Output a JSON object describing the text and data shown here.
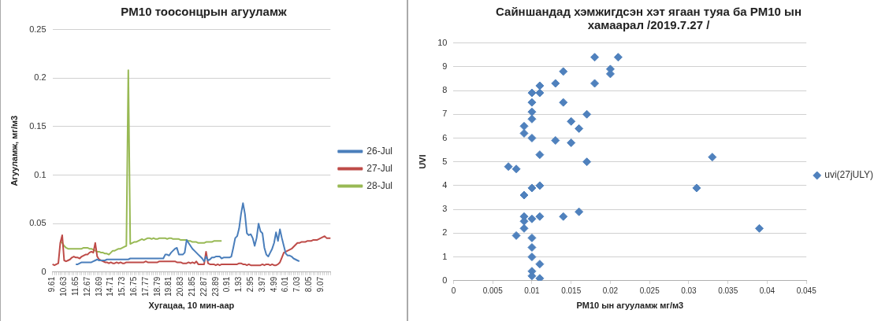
{
  "chart_data": [
    {
      "type": "line",
      "title": "PM10 тоосонцрын агууламж",
      "xlabel": "Хугацаа, 10 мин-аар",
      "ylabel": "Агууламж, мг/м3",
      "categories": [
        "9.61",
        null,
        null,
        null,
        null,
        null,
        "10.63",
        null,
        null,
        null,
        null,
        null,
        "11.65",
        null,
        null,
        null,
        null,
        null,
        "12.67",
        null,
        null,
        null,
        null,
        null,
        "13.69",
        null,
        null,
        null,
        null,
        null,
        "14.71",
        null,
        null,
        null,
        null,
        null,
        "15.73",
        null,
        null,
        null,
        null,
        null,
        "16.75",
        null,
        null,
        null,
        null,
        null,
        "17.77",
        null,
        null,
        null,
        null,
        null,
        "18.79",
        null,
        null,
        null,
        null,
        null,
        "19.81",
        null,
        null,
        null,
        null,
        null,
        "20.83",
        null,
        null,
        null,
        null,
        null,
        "21.85",
        null,
        null,
        null,
        null,
        null,
        "22.87",
        null,
        null,
        null,
        null,
        null,
        "23.89",
        null,
        null,
        null,
        null,
        null,
        "0.91",
        null,
        null,
        null,
        null,
        null,
        "1.93",
        null,
        null,
        null,
        null,
        null,
        "2.95",
        null,
        null,
        null,
        null,
        null,
        "3.97",
        null,
        null,
        null,
        null,
        null,
        "4.99",
        null,
        null,
        null,
        null,
        null,
        "6.01",
        null,
        null,
        null,
        null,
        null,
        "7.03",
        null,
        null,
        null,
        null,
        null,
        "8.05",
        null,
        null,
        null,
        null,
        null,
        "9.07",
        null,
        null,
        null,
        null,
        null
      ],
      "series": [
        {
          "name": "26-Jul",
          "color": "#4a7ebb",
          "values": [
            null,
            null,
            null,
            null,
            null,
            null,
            null,
            null,
            null,
            null,
            null,
            null,
            0.008,
            0.008,
            0.009,
            0.01,
            0.01,
            0.01,
            0.01,
            0.01,
            0.01,
            0.011,
            0.012,
            0.013,
            0.012,
            0.012,
            0.012,
            0.012,
            0.013,
            0.013,
            0.013,
            0.013,
            0.013,
            0.013,
            0.013,
            0.013,
            0.013,
            0.013,
            0.013,
            0.013,
            0.014,
            0.014,
            0.014,
            0.014,
            0.014,
            0.014,
            0.014,
            0.014,
            0.014,
            0.014,
            0.014,
            0.014,
            0.014,
            0.014,
            0.014,
            0.014,
            0.014,
            0.014,
            0.018,
            0.018,
            0.017,
            0.02,
            0.022,
            0.024,
            0.025,
            0.018,
            0.018,
            0.018,
            0.02,
            0.033,
            0.03,
            0.027,
            0.024,
            0.022,
            0.02,
            0.018,
            0.016,
            0.014,
            0.011,
            0.016,
            0.012,
            0.013,
            0.015,
            0.015,
            0.016,
            0.016,
            0.016,
            0.014,
            0.015,
            0.015,
            0.015,
            0.015,
            0.016,
            0.025,
            0.035,
            0.037,
            0.045,
            0.06,
            0.071,
            0.06,
            0.04,
            0.038,
            0.039,
            0.035,
            0.027,
            0.035,
            0.05,
            0.042,
            0.04,
            0.025,
            0.018,
            0.016,
            0.02,
            0.024,
            0.03,
            0.041,
            0.032,
            0.044,
            0.035,
            0.027,
            0.019,
            0.017,
            0.017,
            0.016,
            0.014,
            0.013,
            0.012,
            0.011,
            null,
            null,
            null,
            null,
            null,
            null,
            null,
            null,
            null,
            null,
            null,
            null,
            null,
            null,
            null,
            null
          ]
        },
        {
          "name": "27-Jul",
          "color": "#be4b48",
          "values": [
            0.008,
            0.007,
            0.008,
            0.009,
            0.03,
            0.038,
            0.012,
            0.011,
            0.012,
            0.013,
            0.015,
            0.016,
            0.015,
            0.015,
            0.014,
            0.016,
            0.017,
            0.018,
            0.018,
            0.02,
            0.021,
            0.02,
            0.03,
            0.016,
            0.013,
            0.012,
            0.011,
            0.01,
            0.01,
            0.009,
            0.01,
            0.009,
            0.009,
            0.01,
            0.009,
            0.01,
            0.009,
            0.009,
            0.01,
            0.01,
            0.01,
            0.01,
            0.01,
            0.01,
            0.01,
            0.01,
            0.01,
            0.01,
            0.011,
            0.01,
            0.01,
            0.01,
            0.01,
            0.01,
            0.01,
            0.011,
            0.011,
            0.011,
            0.011,
            0.011,
            0.011,
            0.011,
            0.011,
            0.011,
            0.01,
            0.01,
            0.01,
            0.009,
            0.009,
            0.009,
            0.01,
            0.009,
            0.01,
            0.009,
            0.011,
            0.008,
            0.008,
            0.008,
            0.008,
            0.021,
            0.009,
            0.008,
            0.008,
            0.008,
            0.007,
            0.008,
            0.007,
            0.008,
            0.008,
            0.008,
            0.008,
            0.008,
            0.008,
            0.008,
            0.008,
            0.008,
            0.009,
            0.009,
            0.008,
            0.008,
            0.007,
            0.008,
            0.007,
            0.007,
            0.007,
            0.007,
            0.007,
            0.007,
            0.008,
            0.007,
            0.008,
            0.008,
            0.007,
            0.008,
            0.007,
            0.007,
            0.008,
            0.01,
            0.015,
            0.02,
            0.021,
            0.022,
            0.023,
            0.024,
            0.026,
            0.028,
            0.03,
            0.03,
            0.031,
            0.031,
            0.031,
            0.032,
            0.032,
            0.032,
            0.033,
            0.033,
            0.033,
            0.034,
            0.035,
            0.036,
            0.037,
            0.035,
            0.035,
            0.035
          ]
        },
        {
          "name": "28-Jul",
          "color": "#98b954",
          "values": [
            null,
            null,
            null,
            null,
            0.032,
            0.03,
            0.027,
            0.025,
            0.024,
            0.024,
            0.024,
            0.024,
            0.024,
            0.024,
            0.024,
            0.024,
            0.025,
            0.025,
            0.025,
            0.024,
            0.024,
            0.023,
            0.022,
            0.021,
            0.021,
            0.02,
            0.02,
            0.019,
            0.019,
            0.018,
            0.02,
            0.022,
            0.022,
            0.023,
            0.024,
            0.024,
            0.025,
            0.026,
            0.027,
            0.208,
            0.029,
            0.03,
            0.031,
            0.031,
            0.032,
            0.033,
            0.034,
            0.033,
            0.034,
            0.035,
            0.035,
            0.034,
            0.035,
            0.034,
            0.034,
            0.035,
            0.035,
            0.035,
            0.035,
            0.034,
            0.035,
            0.035,
            0.034,
            0.034,
            0.034,
            0.034,
            0.033,
            0.033,
            0.033,
            0.033,
            0.032,
            0.032,
            0.031,
            0.031,
            0.031,
            0.03,
            0.03,
            0.03,
            0.03,
            0.031,
            0.031,
            0.031,
            0.031,
            0.032,
            0.032,
            0.032,
            0.032,
            0.032,
            null,
            null,
            null,
            null,
            null,
            null,
            null,
            null,
            null,
            null,
            null,
            null,
            null,
            null,
            null,
            null,
            null,
            null,
            null,
            null,
            null,
            null,
            null,
            null,
            null,
            null,
            null,
            null,
            null,
            null,
            null,
            null,
            null,
            null,
            null,
            null,
            null,
            null,
            null,
            null,
            null,
            null,
            null,
            null,
            null,
            null,
            null,
            null,
            null,
            null,
            null,
            null,
            null,
            null,
            null,
            null
          ]
        }
      ],
      "ylim": [
        0,
        0.25
      ],
      "yticks": [
        0,
        0.05,
        0.1,
        0.15,
        0.2,
        0.25
      ],
      "grid": "y",
      "legend": "right",
      "marker": "none",
      "line_style": "solid"
    },
    {
      "type": "scatter",
      "title": "Сайншандад хэмжигдсэн хэт ягаан туяа ба PM10 ын хамаарал /2019.7.27 /",
      "xlabel": "PM10 ын агууламж мг/м3",
      "ylabel": "UVI",
      "series": [
        {
          "name": "uvi(27jULY)",
          "color": "#4f81bd",
          "x": [
            0.018,
            0.021,
            0.014,
            0.02,
            0.02,
            0.013,
            0.018,
            0.011,
            0.01,
            0.011,
            0.01,
            0.014,
            0.01,
            0.017,
            0.01,
            0.015,
            0.009,
            0.016,
            0.009,
            0.01,
            0.013,
            0.015,
            0.011,
            0.033,
            0.017,
            0.007,
            0.008,
            0.011,
            0.01,
            0.031,
            0.009,
            0.016,
            0.009,
            0.011,
            0.014,
            0.01,
            0.009,
            0.009,
            0.039,
            0.008,
            0.01,
            0.01,
            0.01,
            0.011,
            0.01,
            0.01,
            0.011
          ],
          "values": [
            9.4,
            9.4,
            8.8,
            8.9,
            8.7,
            8.3,
            8.3,
            8.2,
            7.9,
            7.9,
            7.5,
            7.5,
            7.1,
            7.0,
            6.8,
            6.7,
            6.5,
            6.4,
            6.2,
            6.0,
            5.9,
            5.8,
            5.3,
            5.2,
            5.0,
            4.8,
            4.7,
            4.0,
            3.9,
            3.9,
            3.6,
            2.9,
            2.7,
            2.7,
            2.7,
            2.6,
            2.5,
            2.2,
            2.2,
            1.9,
            1.8,
            1.4,
            1.0,
            0.7,
            0.4,
            0.2,
            0.1
          ]
        }
      ],
      "xlim": [
        0,
        0.045
      ],
      "xticks": [
        0,
        0.005,
        0.01,
        0.015,
        0.02,
        0.025,
        0.03,
        0.035,
        0.04,
        0.045
      ],
      "ylim": [
        0,
        10
      ],
      "yticks": [
        0,
        1,
        2,
        3,
        4,
        5,
        6,
        7,
        8,
        9,
        10
      ],
      "grid": "y",
      "legend": "right",
      "marker": "diamond"
    }
  ]
}
